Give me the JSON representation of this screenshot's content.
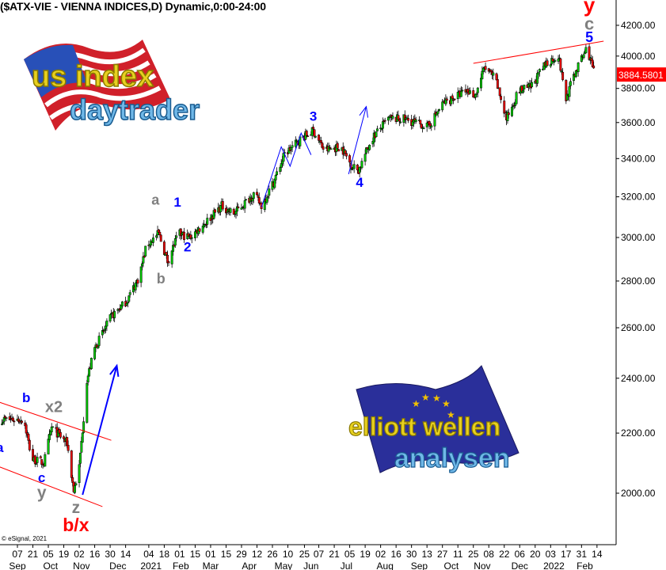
{
  "title": "($ATX-VIE - VIENNA INDICES,D) Dynamic,0:00-24:00",
  "copyright": "© eSignal, 2021",
  "logos": {
    "top_left": {
      "line1": "us index",
      "line2": "daytrader"
    },
    "bottom_right": {
      "line1": "elliott wellen",
      "line2": "analysen"
    }
  },
  "colors": {
    "up": "#00cc00",
    "down": "#ee0000",
    "trendline": "#ff0000",
    "arrow": "#0000ff",
    "wave_blue": "#0000ff",
    "wave_gray": "#808080",
    "wave_red": "#ff0000",
    "last_price_bg": "#ff0000"
  },
  "chart_data": {
    "type": "candlestick",
    "symbol": "$ATX-VIE",
    "interval": "D",
    "y_scale": "log",
    "ylim": [
      1880,
      4300
    ],
    "yticks": [
      "2000.00",
      "2200.00",
      "2400.00",
      "2600.00",
      "2800.00",
      "3000.00",
      "3200.00",
      "3400.00",
      "3600.00",
      "3800.00",
      "4000.00",
      "4200.00"
    ],
    "last_price": "3884.5801",
    "close_path": [
      [
        "2020-08-22",
        2248
      ],
      [
        "2020-09-13",
        2248
      ],
      [
        "2020-09-20",
        2111
      ],
      [
        "2020-10-01",
        2098
      ],
      [
        "2020-10-08",
        2220
      ],
      [
        "2020-10-22",
        2165
      ],
      [
        "2020-10-28",
        2008
      ],
      [
        "2020-11-02",
        2085
      ],
      [
        "2020-11-09",
        2393
      ],
      [
        "2020-11-16",
        2517
      ],
      [
        "2020-12-01",
        2646
      ],
      [
        "2020-12-15",
        2713
      ],
      [
        "2020-12-26",
        2817
      ],
      [
        "2021-01-02",
        2962
      ],
      [
        "2021-01-13",
        3019
      ],
      [
        "2021-01-21",
        2889
      ],
      [
        "2021-01-31",
        3019
      ],
      [
        "2021-02-10",
        3000
      ],
      [
        "2021-02-25",
        3076
      ],
      [
        "2021-03-11",
        3154
      ],
      [
        "2021-03-22",
        3115
      ],
      [
        "2021-04-09",
        3214
      ],
      [
        "2021-04-16",
        3154
      ],
      [
        "2021-04-27",
        3275
      ],
      [
        "2021-05-07",
        3423
      ],
      [
        "2021-05-22",
        3510
      ],
      [
        "2021-06-02",
        3554
      ],
      [
        "2021-06-12",
        3444
      ],
      [
        "2021-06-27",
        3466
      ],
      [
        "2021-07-07",
        3359
      ],
      [
        "2021-07-13",
        3338
      ],
      [
        "2021-07-25",
        3510
      ],
      [
        "2021-08-09",
        3621
      ],
      [
        "2021-08-23",
        3621
      ],
      [
        "2021-09-14",
        3576
      ],
      [
        "2021-09-28",
        3714
      ],
      [
        "2021-10-19",
        3785
      ],
      [
        "2021-10-27",
        3761
      ],
      [
        "2021-11-04",
        3929
      ],
      [
        "2021-11-14",
        3856
      ],
      [
        "2021-11-24",
        3621
      ],
      [
        "2021-12-05",
        3785
      ],
      [
        "2021-12-16",
        3808
      ],
      [
        "2021-12-30",
        3954
      ],
      [
        "2022-01-10",
        4004
      ],
      [
        "2022-01-17",
        3737
      ],
      [
        "2022-01-24",
        3880
      ],
      [
        "2022-02-05",
        4055
      ],
      [
        "2022-02-10",
        3929
      ],
      [
        "2022-02-13",
        3884.58
      ]
    ],
    "x_day_labels": [
      [
        "2020-09-07",
        "07"
      ],
      [
        "2020-09-21",
        "21"
      ],
      [
        "2020-10-05",
        "05"
      ],
      [
        "2020-10-19",
        "19"
      ],
      [
        "2020-11-02",
        "02"
      ],
      [
        "2020-11-16",
        "16"
      ],
      [
        "2020-11-30",
        "30"
      ],
      [
        "2020-12-14",
        "14"
      ],
      [
        "2021-01-04",
        "04"
      ],
      [
        "2021-01-18",
        "18"
      ],
      [
        "2021-02-01",
        "01"
      ],
      [
        "2021-02-15",
        "15"
      ],
      [
        "2021-03-01",
        "01"
      ],
      [
        "2021-03-15",
        "15"
      ],
      [
        "2021-03-29",
        "29"
      ],
      [
        "2021-04-12",
        "12"
      ],
      [
        "2021-04-26",
        "26"
      ],
      [
        "2021-05-10",
        "10"
      ],
      [
        "2021-05-25",
        "25"
      ],
      [
        "2021-06-07",
        "07"
      ],
      [
        "2021-06-21",
        "21"
      ],
      [
        "2021-07-05",
        "05"
      ],
      [
        "2021-07-19",
        "19"
      ],
      [
        "2021-08-02",
        "02"
      ],
      [
        "2021-08-16",
        "16"
      ],
      [
        "2021-08-30",
        "30"
      ],
      [
        "2021-09-13",
        "13"
      ],
      [
        "2021-09-27",
        "27"
      ],
      [
        "2021-10-11",
        "11"
      ],
      [
        "2021-10-25",
        "25"
      ],
      [
        "2021-11-08",
        "08"
      ],
      [
        "2021-11-22",
        "22"
      ],
      [
        "2021-12-06",
        "06"
      ],
      [
        "2021-12-20",
        "20"
      ],
      [
        "2022-01-03",
        "03"
      ],
      [
        "2022-01-17",
        "17"
      ],
      [
        "2022-01-31",
        "31"
      ],
      [
        "2022-02-14",
        "14"
      ]
    ],
    "x_month_labels": [
      [
        "2020-09-07",
        "Sep"
      ],
      [
        "2020-10-07",
        "Oct"
      ],
      [
        "2020-11-04",
        "Nov"
      ],
      [
        "2020-12-07",
        "Dec"
      ],
      [
        "2021-01-06",
        "2021"
      ],
      [
        "2021-02-02",
        "Feb"
      ],
      [
        "2021-03-01",
        "Mar"
      ],
      [
        "2021-04-05",
        "Apr"
      ],
      [
        "2021-05-06",
        "May"
      ],
      [
        "2021-05-31",
        "Jun"
      ],
      [
        "2021-07-02",
        "Jul"
      ],
      [
        "2021-08-06",
        "Aug"
      ],
      [
        "2021-09-06",
        "Sep"
      ],
      [
        "2021-10-05",
        "Oct"
      ],
      [
        "2021-11-02",
        "Nov"
      ],
      [
        "2021-12-06",
        "Dec"
      ],
      [
        "2022-01-06",
        "2022"
      ],
      [
        "2022-02-03",
        "Feb"
      ]
    ],
    "wave_labels": [
      {
        "text": "y",
        "color": "red",
        "date": "2022-02-07",
        "price": 4290,
        "size": 26
      },
      {
        "text": "c",
        "color": "gray",
        "date": "2022-02-07",
        "price": 4170,
        "size": 22
      },
      {
        "text": "5",
        "color": "blue",
        "date": "2022-02-07",
        "price": 4090,
        "size": 18
      },
      {
        "text": "3",
        "color": "blue",
        "date": "2021-06-02",
        "price": 3610,
        "size": 17
      },
      {
        "text": "4",
        "color": "blue",
        "date": "2021-07-14",
        "price": 3250,
        "size": 17
      },
      {
        "text": "a",
        "color": "gray",
        "date": "2021-01-10",
        "price": 3160,
        "size": 18
      },
      {
        "text": "1",
        "color": "blue",
        "date": "2021-01-30",
        "price": 3150,
        "size": 17
      },
      {
        "text": "2",
        "color": "blue",
        "date": "2021-02-08",
        "price": 2935,
        "size": 17
      },
      {
        "text": "b",
        "color": "gray",
        "date": "2021-01-15",
        "price": 2790,
        "size": 18
      },
      {
        "text": "b",
        "color": "blue",
        "date": "2020-09-15",
        "price": 2310,
        "size": 17
      },
      {
        "text": "x2",
        "color": "gray",
        "date": "2020-10-10",
        "price": 2275,
        "size": 20
      },
      {
        "text": "a",
        "color": "blue",
        "date": "2020-08-22",
        "price": 2135,
        "size": 17
      },
      {
        "text": "c",
        "color": "blue",
        "date": "2020-09-29",
        "price": 2035,
        "size": 17
      },
      {
        "text": "y",
        "color": "gray",
        "date": "2020-09-29",
        "price": 1985,
        "size": 21
      },
      {
        "text": "z",
        "color": "gray",
        "date": "2020-10-30",
        "price": 1938,
        "size": 21
      },
      {
        "text": "b/x",
        "color": "red",
        "date": "2020-10-30",
        "price": 1895,
        "size": 23
      }
    ],
    "trendlines": [
      [
        [
          "2020-08-22",
          2310
        ],
        [
          "2020-12-01",
          2175
        ]
      ],
      [
        [
          "2020-08-22",
          2085
        ],
        [
          "2020-11-23",
          1958
        ]
      ],
      [
        [
          "2021-10-25",
          3954
        ],
        [
          "2022-02-20",
          4096
        ]
      ]
    ],
    "arrows": [
      [
        [
          "2020-11-05",
          1995
        ],
        [
          "2020-12-06",
          2448
        ]
      ],
      [
        [
          "2021-04-16",
          3147
        ],
        [
          "2021-05-04",
          3464
        ],
        [
          "2021-05-12",
          3359
        ],
        [
          "2021-05-22",
          3540
        ],
        [
          "2021-05-31",
          3420
        ]
      ],
      [
        [
          "2021-07-04",
          3317
        ],
        [
          "2021-07-20",
          3692
        ]
      ]
    ]
  }
}
